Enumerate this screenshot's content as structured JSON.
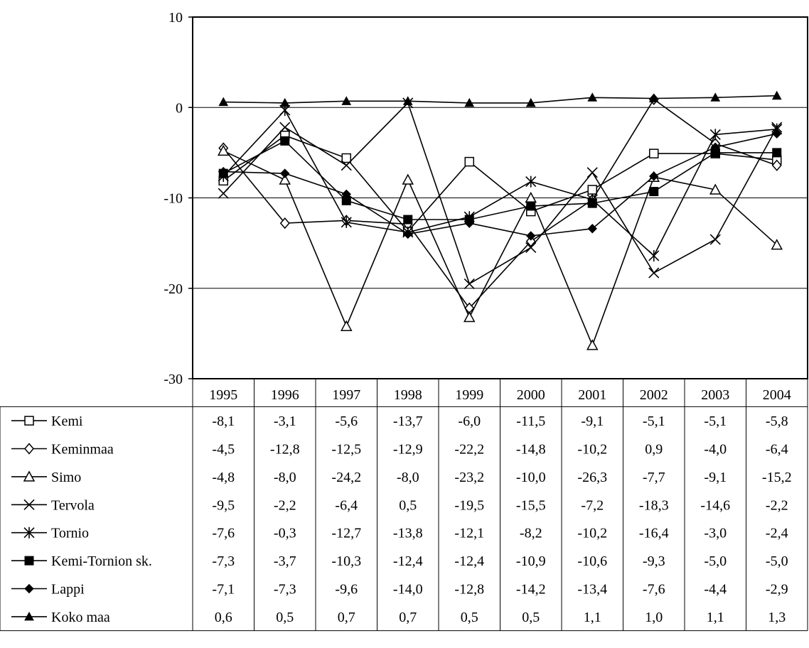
{
  "chart_data": {
    "type": "line",
    "title": "",
    "xlabel": "",
    "ylabel": "",
    "ylim": [
      -30,
      10
    ],
    "yticks": [
      "10",
      "0",
      "-10",
      "-20",
      "-30"
    ],
    "grid": true,
    "legend": "data-table-below",
    "categories": [
      "1995",
      "1996",
      "1997",
      "1998",
      "1999",
      "2000",
      "2001",
      "2002",
      "2003",
      "2004"
    ],
    "series": [
      {
        "name": "Kemi",
        "marker": "open-square",
        "values": [
          -8.1,
          -3.1,
          -5.6,
          -13.7,
          -6.0,
          -11.5,
          -9.1,
          -5.1,
          -5.1,
          -5.8
        ],
        "labels": [
          "-8,1",
          "-3,1",
          "-5,6",
          "-13,7",
          "-6,0",
          "-11,5",
          "-9,1",
          "-5,1",
          "-5,1",
          "-5,8"
        ]
      },
      {
        "name": "Keminmaa",
        "marker": "open-diamond",
        "values": [
          -4.5,
          -12.8,
          -12.5,
          -12.9,
          -22.2,
          -14.8,
          -10.2,
          0.9,
          -4.0,
          -6.4
        ],
        "labels": [
          "-4,5",
          "-12,8",
          "-12,5",
          "-12,9",
          "-22,2",
          "-14,8",
          "-10,2",
          "0,9",
          "-4,0",
          "-6,4"
        ]
      },
      {
        "name": "Simo",
        "marker": "open-triangle",
        "values": [
          -4.8,
          -8.0,
          -24.2,
          -8.0,
          -23.2,
          -10.0,
          -26.3,
          -7.7,
          -9.1,
          -15.2
        ],
        "labels": [
          "-4,8",
          "-8,0",
          "-24,2",
          "-8,0",
          "-23,2",
          "-10,0",
          "-26,3",
          "-7,7",
          "-9,1",
          "-15,2"
        ]
      },
      {
        "name": "Tervola",
        "marker": "x",
        "values": [
          -9.5,
          -2.2,
          -6.4,
          0.5,
          -19.5,
          -15.5,
          -7.2,
          -18.3,
          -14.6,
          -2.2
        ],
        "labels": [
          "-9,5",
          "-2,2",
          "-6,4",
          "0,5",
          "-19,5",
          "-15,5",
          "-7,2",
          "-18,3",
          "-14,6",
          "-2,2"
        ]
      },
      {
        "name": "Tornio",
        "marker": "star",
        "values": [
          -7.6,
          -0.3,
          -12.7,
          -13.8,
          -12.1,
          -8.2,
          -10.2,
          -16.4,
          -3.0,
          -2.4
        ],
        "labels": [
          "-7,6",
          "-0,3",
          "-12,7",
          "-13,8",
          "-12,1",
          "-8,2",
          "-10,2",
          "-16,4",
          "-3,0",
          "-2,4"
        ]
      },
      {
        "name": "Kemi-Tornion sk.",
        "marker": "filled-square",
        "values": [
          -7.3,
          -3.7,
          -10.3,
          -12.4,
          -12.4,
          -10.9,
          -10.6,
          -9.3,
          -5.0,
          -5.0
        ],
        "labels": [
          "-7,3",
          "-3,7",
          "-10,3",
          "-12,4",
          "-12,4",
          "-10,9",
          "-10,6",
          "-9,3",
          "-5,0",
          "-5,0"
        ]
      },
      {
        "name": "Lappi",
        "marker": "filled-diamond",
        "values": [
          -7.1,
          -7.3,
          -9.6,
          -14.0,
          -12.8,
          -14.2,
          -13.4,
          -7.6,
          -4.4,
          -2.9
        ],
        "labels": [
          "-7,1",
          "-7,3",
          "-9,6",
          "-14,0",
          "-12,8",
          "-14,2",
          "-13,4",
          "-7,6",
          "-4,4",
          "-2,9"
        ]
      },
      {
        "name": "Koko maa",
        "marker": "filled-triangle",
        "values": [
          0.6,
          0.5,
          0.7,
          0.7,
          0.5,
          0.5,
          1.1,
          1.0,
          1.1,
          1.3
        ],
        "labels": [
          "0,6",
          "0,5",
          "0,7",
          "0,7",
          "0,5",
          "0,5",
          "1,1",
          "1,0",
          "1,1",
          "1,3"
        ]
      }
    ]
  }
}
